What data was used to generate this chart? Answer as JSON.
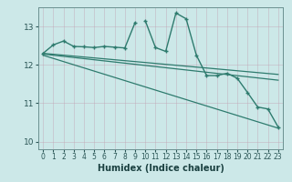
{
  "xlabel": "Humidex (Indice chaleur)",
  "xlim": [
    -0.5,
    23.5
  ],
  "ylim": [
    9.8,
    13.5
  ],
  "yticks": [
    10,
    11,
    12,
    13
  ],
  "xticks": [
    0,
    1,
    2,
    3,
    4,
    5,
    6,
    7,
    8,
    9,
    10,
    11,
    12,
    13,
    14,
    15,
    16,
    17,
    18,
    19,
    20,
    21,
    22,
    23
  ],
  "bg_color": "#cce8e8",
  "line_color": "#2e7b6e",
  "series": [
    {
      "x": [
        0,
        1,
        2,
        3,
        4,
        5,
        6,
        7,
        8,
        9
      ],
      "y": [
        12.3,
        12.52,
        12.62,
        12.48,
        12.47,
        12.45,
        12.48,
        12.46,
        12.44,
        13.1
      ],
      "marker": "+",
      "markersize": 3.0,
      "linewidth": 1.0
    },
    {
      "x": [
        10,
        11,
        12,
        13,
        14,
        15,
        16,
        17,
        18,
        19,
        20,
        21,
        22,
        23
      ],
      "y": [
        13.15,
        12.45,
        12.35,
        13.35,
        13.2,
        12.25,
        11.72,
        11.72,
        11.78,
        11.65,
        11.28,
        10.9,
        10.85,
        10.38
      ],
      "marker": "+",
      "markersize": 3.0,
      "linewidth": 1.0
    },
    {
      "x": [
        0,
        23
      ],
      "y": [
        12.3,
        11.75
      ],
      "marker": "None",
      "markersize": 0,
      "linewidth": 0.9
    },
    {
      "x": [
        0,
        23
      ],
      "y": [
        12.28,
        11.6
      ],
      "marker": "None",
      "markersize": 0,
      "linewidth": 0.9
    },
    {
      "x": [
        0,
        23
      ],
      "y": [
        12.25,
        10.35
      ],
      "marker": "None",
      "markersize": 0,
      "linewidth": 0.9
    }
  ]
}
